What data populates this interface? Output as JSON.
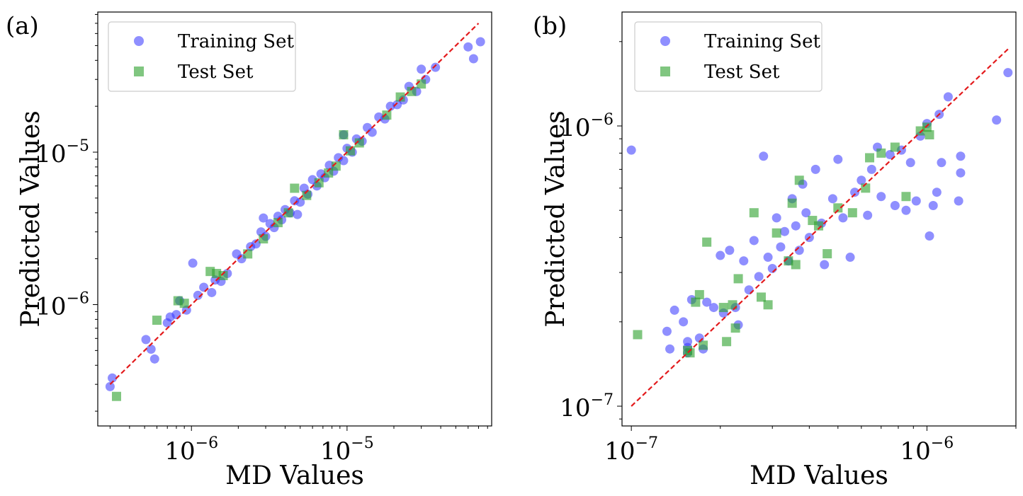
{
  "chart_data": [
    {
      "panel_label": "(a)",
      "type": "scatter",
      "xscale": "log",
      "yscale": "log",
      "xlabel": "MD Values",
      "ylabel": "Predicted Values",
      "xlim": [
        2.5e-07,
        8.5e-05
      ],
      "ylim": [
        1.6e-07,
        8.3e-05
      ],
      "xticks": [
        {
          "base": "10",
          "exp": "−6",
          "value": 1e-06
        },
        {
          "base": "10",
          "exp": "−5",
          "value": 1e-05
        }
      ],
      "yticks": [
        {
          "base": "10",
          "exp": "−6",
          "value": 1e-06
        },
        {
          "base": "10",
          "exp": "−5",
          "value": 1e-05
        }
      ],
      "reference_line": {
        "style": "dashed",
        "color": "#e31a1c",
        "from": 3e-07,
        "to": 7e-05
      },
      "legend": {
        "placement": "top-left",
        "entries": [
          "Training Set",
          "Test Set"
        ]
      },
      "series": [
        {
          "name": "Training Set",
          "marker": "circle",
          "color": "#3333ff",
          "points": [
            [
              3e-07,
              2.9e-07
            ],
            [
              3.1e-07,
              3.3e-07
            ],
            [
              5.1e-07,
              5.9e-07
            ],
            [
              5.5e-07,
              5.1e-07
            ],
            [
              5.8e-07,
              4.4e-07
            ],
            [
              7e-07,
              7.6e-07
            ],
            [
              7.3e-07,
              8.3e-07
            ],
            [
              8e-07,
              8.6e-07
            ],
            [
              8.4e-07,
              1.06e-06
            ],
            [
              9.3e-07,
              9.2e-07
            ],
            [
              1.02e-06,
              1.87e-06
            ],
            [
              1.1e-06,
              1.15e-06
            ],
            [
              1.2e-06,
              1.3e-06
            ],
            [
              1.35e-06,
              1.2e-06
            ],
            [
              1.42e-06,
              1.45e-06
            ],
            [
              1.55e-06,
              1.42e-06
            ],
            [
              1.7e-06,
              1.6e-06
            ],
            [
              1.95e-06,
              2.15e-06
            ],
            [
              2.1e-06,
              2e-06
            ],
            [
              2.4e-06,
              2.4e-06
            ],
            [
              2.6e-06,
              2.5e-06
            ],
            [
              2.8e-06,
              3e-06
            ],
            [
              3e-06,
              2.8e-06
            ],
            [
              3.2e-06,
              3.4e-06
            ],
            [
              3.4e-06,
              3.2e-06
            ],
            [
              3.6e-06,
              3.8e-06
            ],
            [
              3.8e-06,
              3.6e-06
            ],
            [
              4e-06,
              4.2e-06
            ],
            [
              4.3e-06,
              4e-06
            ],
            [
              4.6e-06,
              4.8e-06
            ],
            [
              5e-06,
              4.7e-06
            ],
            [
              5.3e-06,
              5.8e-06
            ],
            [
              5.6e-06,
              5.3e-06
            ],
            [
              6e-06,
              6.6e-06
            ],
            [
              6.4e-06,
              6e-06
            ],
            [
              6.8e-06,
              7.2e-06
            ],
            [
              7.2e-06,
              6.8e-06
            ],
            [
              7.7e-06,
              8.2e-06
            ],
            [
              8.2e-06,
              7.5e-06
            ],
            [
              8.8e-06,
              9.2e-06
            ],
            [
              9.5e-06,
              8.8e-06
            ],
            [
              1e-05,
              1.06e-05
            ],
            [
              1.08e-05,
              1e-05
            ],
            [
              1.15e-05,
              1.22e-05
            ],
            [
              1.25e-05,
              1.18e-05
            ],
            [
              1.35e-05,
              1.45e-05
            ],
            [
              1.45e-05,
              1.35e-05
            ],
            [
              1.6e-05,
              1.7e-05
            ],
            [
              1.75e-05,
              1.65e-05
            ],
            [
              1.9e-05,
              2e-05
            ],
            [
              2.1e-05,
              2.05e-05
            ],
            [
              2.3e-05,
              2.2e-05
            ],
            [
              2.5e-05,
              2.7e-05
            ],
            [
              2.8e-05,
              2.5e-05
            ],
            [
              3e-05,
              3.5e-05
            ],
            [
              3.2e-05,
              3e-05
            ],
            [
              3.7e-05,
              3.6e-05
            ],
            [
              6e-05,
              4.9e-05
            ],
            [
              6.5e-05,
              4.1e-05
            ],
            [
              7.2e-05,
              5.3e-05
            ],
            [
              9.5e-06,
              1.3e-05
            ],
            [
              2.9e-06,
              3.7e-06
            ],
            [
              4.8e-06,
              3.9e-06
            ]
          ]
        },
        {
          "name": "Test Set",
          "marker": "square",
          "color": "#2ca02c",
          "points": [
            [
              3.3e-07,
              2.5e-07
            ],
            [
              6e-07,
              7.9e-07
            ],
            [
              8.2e-07,
              1.06e-06
            ],
            [
              9e-07,
              1.02e-06
            ],
            [
              1.32e-06,
              1.65e-06
            ],
            [
              1.45e-06,
              1.6e-06
            ],
            [
              1.6e-06,
              1.55e-06
            ],
            [
              2.3e-06,
              2.15e-06
            ],
            [
              2.9e-06,
              2.7e-06
            ],
            [
              3.6e-06,
              3.45e-06
            ],
            [
              4.2e-06,
              4e-06
            ],
            [
              4.6e-06,
              5.8e-06
            ],
            [
              5.5e-06,
              5.2e-06
            ],
            [
              6.6e-06,
              6.3e-06
            ],
            [
              7.6e-06,
              7.3e-06
            ],
            [
              8.5e-06,
              8.1e-06
            ],
            [
              9.5e-06,
              1.3e-05
            ],
            [
              1.05e-05,
              1.02e-05
            ],
            [
              1.2e-05,
              1.15e-05
            ],
            [
              1.8e-05,
              1.75e-05
            ],
            [
              2.2e-05,
              2.3e-05
            ],
            [
              2.6e-05,
              2.5e-05
            ],
            [
              3e-05,
              2.8e-05
            ]
          ]
        }
      ]
    },
    {
      "panel_label": "(b)",
      "type": "scatter",
      "xscale": "log",
      "yscale": "log",
      "xlabel": "MD Values",
      "ylabel": "Predicted Values",
      "xlim": [
        9.3e-08,
        2e-06
      ],
      "ylim": [
        8.5e-08,
        2.55e-06
      ],
      "xticks": [
        {
          "base": "10",
          "exp": "−7",
          "value": 1e-07
        },
        {
          "base": "10",
          "exp": "−6",
          "value": 1e-06
        }
      ],
      "yticks": [
        {
          "base": "10",
          "exp": "−7",
          "value": 1e-07
        },
        {
          "base": "10",
          "exp": "−6",
          "value": 1e-06
        }
      ],
      "reference_line": {
        "style": "dashed",
        "color": "#e31a1c",
        "from": 1e-07,
        "to": 1.9e-06
      },
      "legend": {
        "placement": "top-left",
        "entries": [
          "Training Set",
          "Test Set"
        ]
      },
      "series": [
        {
          "name": "Training Set",
          "marker": "circle",
          "color": "#3333ff",
          "points": [
            [
              1e-07,
              8.2e-07
            ],
            [
              1.32e-07,
              1.85e-07
            ],
            [
              1.35e-07,
              1.6e-07
            ],
            [
              1.4e-07,
              2.2e-07
            ],
            [
              1.5e-07,
              2e-07
            ],
            [
              1.55e-07,
              1.7e-07
            ],
            [
              1.55e-07,
              1.62e-07
            ],
            [
              1.55e-07,
              1.55e-07
            ],
            [
              1.6e-07,
              2.4e-07
            ],
            [
              1.7e-07,
              1.75e-07
            ],
            [
              1.75e-07,
              1.6e-07
            ],
            [
              1.8e-07,
              2.35e-07
            ],
            [
              1.9e-07,
              2.25e-07
            ],
            [
              2e-07,
              3.45e-07
            ],
            [
              2.05e-07,
              2.15e-07
            ],
            [
              2.15e-07,
              3.6e-07
            ],
            [
              2.25e-07,
              2.25e-07
            ],
            [
              2.3e-07,
              1.95e-07
            ],
            [
              2.4e-07,
              3.3e-07
            ],
            [
              2.5e-07,
              2.6e-07
            ],
            [
              2.6e-07,
              3.9e-07
            ],
            [
              2.7e-07,
              2.9e-07
            ],
            [
              2.8e-07,
              7.8e-07
            ],
            [
              2.9e-07,
              3.4e-07
            ],
            [
              3e-07,
              3.1e-07
            ],
            [
              3.1e-07,
              4.7e-07
            ],
            [
              3.2e-07,
              3.7e-07
            ],
            [
              3.3e-07,
              4.2e-07
            ],
            [
              3.4e-07,
              3.3e-07
            ],
            [
              3.5e-07,
              5.5e-07
            ],
            [
              3.6e-07,
              4.4e-07
            ],
            [
              3.7e-07,
              3.6e-07
            ],
            [
              3.8e-07,
              6.2e-07
            ],
            [
              3.9e-07,
              4.9e-07
            ],
            [
              4e-07,
              4e-07
            ],
            [
              4.2e-07,
              7e-07
            ],
            [
              4.4e-07,
              4.5e-07
            ],
            [
              4.5e-07,
              3.2e-07
            ],
            [
              4.8e-07,
              5.5e-07
            ],
            [
              5e-07,
              7.6e-07
            ],
            [
              5.2e-07,
              4.7e-07
            ],
            [
              5.5e-07,
              3.4e-07
            ],
            [
              5.7e-07,
              5.8e-07
            ],
            [
              6e-07,
              6.4e-07
            ],
            [
              6.3e-07,
              4.8e-07
            ],
            [
              6.5e-07,
              7e-07
            ],
            [
              6.8e-07,
              8.4e-07
            ],
            [
              7e-07,
              5.6e-07
            ],
            [
              7.5e-07,
              7.9e-07
            ],
            [
              7.8e-07,
              5.2e-07
            ],
            [
              8.2e-07,
              8.2e-07
            ],
            [
              8.5e-07,
              5e-07
            ],
            [
              8.8e-07,
              7.4e-07
            ],
            [
              9.2e-07,
              5.4e-07
            ],
            [
              9.5e-07,
              9.2e-07
            ],
            [
              1e-06,
              1.02e-06
            ],
            [
              1.02e-06,
              4.05e-07
            ],
            [
              1.05e-06,
              5.2e-07
            ],
            [
              1.08e-06,
              5.8e-07
            ],
            [
              1.1e-06,
              1.1e-06
            ],
            [
              1.12e-06,
              7.4e-07
            ],
            [
              1.18e-06,
              1.27e-06
            ],
            [
              1.28e-06,
              5.4e-07
            ],
            [
              1.3e-06,
              7.8e-07
            ],
            [
              1.3e-06,
              6.8e-07
            ],
            [
              1.72e-06,
              1.05e-06
            ],
            [
              1.88e-06,
              1.55e-06
            ]
          ]
        },
        {
          "name": "Test Set",
          "marker": "square",
          "color": "#2ca02c",
          "points": [
            [
              1.05e-07,
              1.8e-07
            ],
            [
              1.55e-07,
              1.58e-07
            ],
            [
              1.58e-07,
              1.55e-07
            ],
            [
              1.65e-07,
              2.35e-07
            ],
            [
              1.7e-07,
              2.5e-07
            ],
            [
              1.75e-07,
              1.65e-07
            ],
            [
              1.8e-07,
              3.85e-07
            ],
            [
              2.05e-07,
              2.25e-07
            ],
            [
              2.1e-07,
              1.7e-07
            ],
            [
              2.2e-07,
              2.3e-07
            ],
            [
              2.25e-07,
              1.9e-07
            ],
            [
              2.3e-07,
              2.85e-07
            ],
            [
              2.6e-07,
              4.9e-07
            ],
            [
              2.75e-07,
              2.45e-07
            ],
            [
              2.9e-07,
              2.3e-07
            ],
            [
              3.1e-07,
              4.15e-07
            ],
            [
              3.4e-07,
              3.3e-07
            ],
            [
              3.5e-07,
              5.3e-07
            ],
            [
              3.6e-07,
              3.2e-07
            ],
            [
              3.7e-07,
              6.4e-07
            ],
            [
              4.1e-07,
              4.6e-07
            ],
            [
              4.3e-07,
              4.4e-07
            ],
            [
              4.6e-07,
              3.5e-07
            ],
            [
              5e-07,
              5.1e-07
            ],
            [
              5.6e-07,
              4.9e-07
            ],
            [
              6.2e-07,
              6e-07
            ],
            [
              6.4e-07,
              7.7e-07
            ],
            [
              7e-07,
              8e-07
            ],
            [
              7.8e-07,
              8.4e-07
            ],
            [
              8.5e-07,
              5.6e-07
            ],
            [
              9.5e-07,
              9.6e-07
            ],
            [
              1e-06,
              9.9e-07
            ],
            [
              1.02e-06,
              9.3e-07
            ]
          ]
        }
      ]
    }
  ]
}
